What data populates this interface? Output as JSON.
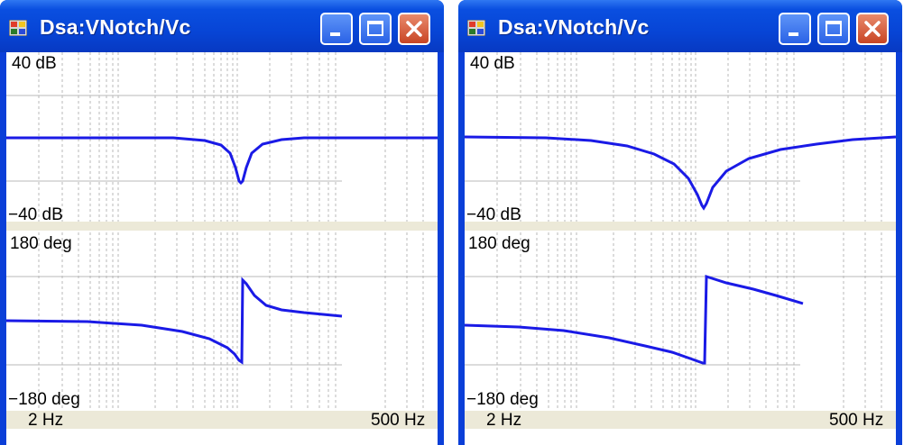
{
  "windows": [
    {
      "title": "Dsa:VNotch/Vc",
      "magnitude": {
        "top_label": "40 dB",
        "bottom_label": "−40 dB"
      },
      "phase": {
        "top_label": "180 deg",
        "bottom_label": "−180 deg"
      },
      "x_axis": {
        "min_label": "2 Hz",
        "max_label": "500 Hz"
      }
    },
    {
      "title": "Dsa:VNotch/Vc",
      "magnitude": {
        "top_label": "40 dB",
        "bottom_label": "−40 dB"
      },
      "phase": {
        "top_label": "180 deg",
        "bottom_label": "−180 deg"
      },
      "x_axis": {
        "min_label": "2 Hz",
        "max_label": "500 Hz"
      }
    }
  ],
  "colors": {
    "title_bar": "#0745d6",
    "trace": "#1a1ae6",
    "gridline": "#b8b8b8",
    "label_band": "#ece9d8"
  },
  "icons": [
    "app-icon",
    "minimize-icon",
    "maximize-icon",
    "close-icon"
  ]
}
